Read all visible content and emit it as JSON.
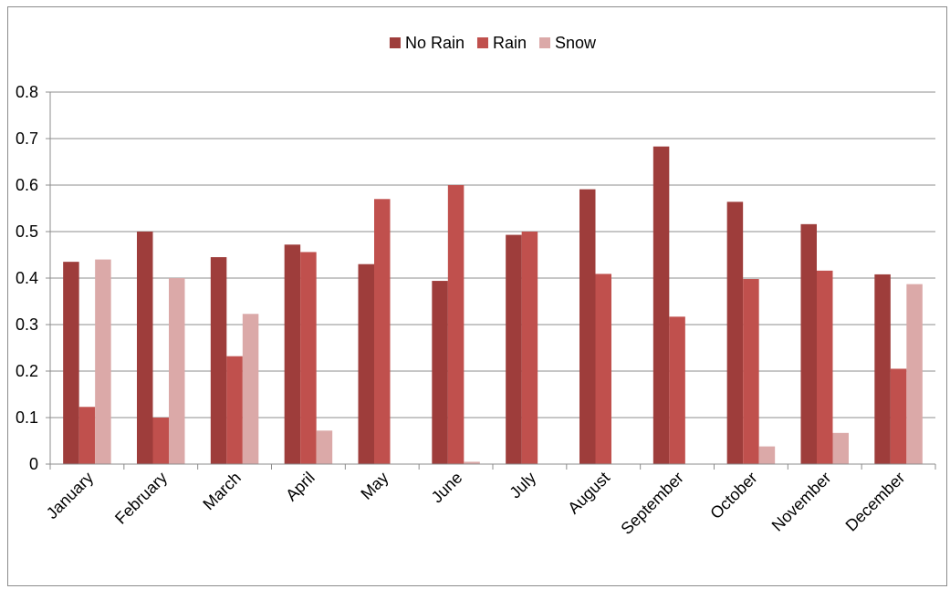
{
  "chart_data": {
    "type": "bar",
    "title": "",
    "xlabel": "",
    "ylabel": "",
    "ylim": [
      0,
      0.8
    ],
    "yticks": [
      "0",
      "0.1",
      "0.2",
      "0.3",
      "0.4",
      "0.5",
      "0.6",
      "0.7",
      "0.8"
    ],
    "grid": true,
    "legend_position": "top-center",
    "categories": [
      "January",
      "February",
      "March",
      "April",
      "May",
      "June",
      "July",
      "August",
      "September",
      "October",
      "November",
      "December"
    ],
    "series": [
      {
        "name": "No Rain",
        "color": "#9e3d3b",
        "values": [
          0.435,
          0.5,
          0.445,
          0.472,
          0.43,
          0.394,
          0.493,
          0.591,
          0.683,
          0.564,
          0.516,
          0.408
        ]
      },
      {
        "name": "Rain",
        "color": "#c0504d",
        "values": [
          0.123,
          0.1,
          0.232,
          0.456,
          0.57,
          0.6,
          0.5,
          0.409,
          0.317,
          0.398,
          0.416,
          0.205
        ]
      },
      {
        "name": "Snow",
        "color": "#dba9a8",
        "values": [
          0.44,
          0.4,
          0.323,
          0.072,
          0.0,
          0.005,
          0.0,
          0.0,
          0.0,
          0.038,
          0.067,
          0.387
        ]
      }
    ]
  }
}
